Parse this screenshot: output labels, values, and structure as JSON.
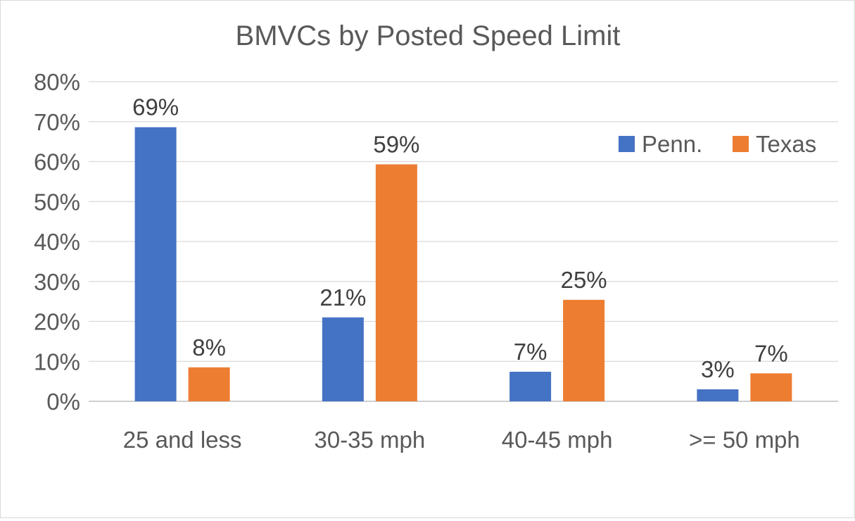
{
  "chart_data": {
    "type": "bar",
    "title": "BMVCs by Posted Speed Limit",
    "xlabel": "",
    "ylabel": "",
    "categories": [
      "25 and less",
      "30-35 mph",
      "40-45 mph",
      ">= 50 mph"
    ],
    "series": [
      {
        "name": "Penn.",
        "color": "#4472c4",
        "values": [
          68.6,
          21.0,
          7.4,
          3.0
        ],
        "labels": [
          "69%",
          "21%",
          "7%",
          "3%"
        ]
      },
      {
        "name": "Texas",
        "color": "#ed7d31",
        "values": [
          8.5,
          59.3,
          25.4,
          7.0
        ],
        "labels": [
          "8%",
          "59%",
          "25%",
          "7%"
        ]
      }
    ],
    "ylim": [
      0,
      80
    ],
    "yticks": [
      "0%",
      "10%",
      "20%",
      "30%",
      "40%",
      "50%",
      "60%",
      "70%",
      "80%"
    ],
    "grid": true,
    "legend_position": "top-right"
  }
}
